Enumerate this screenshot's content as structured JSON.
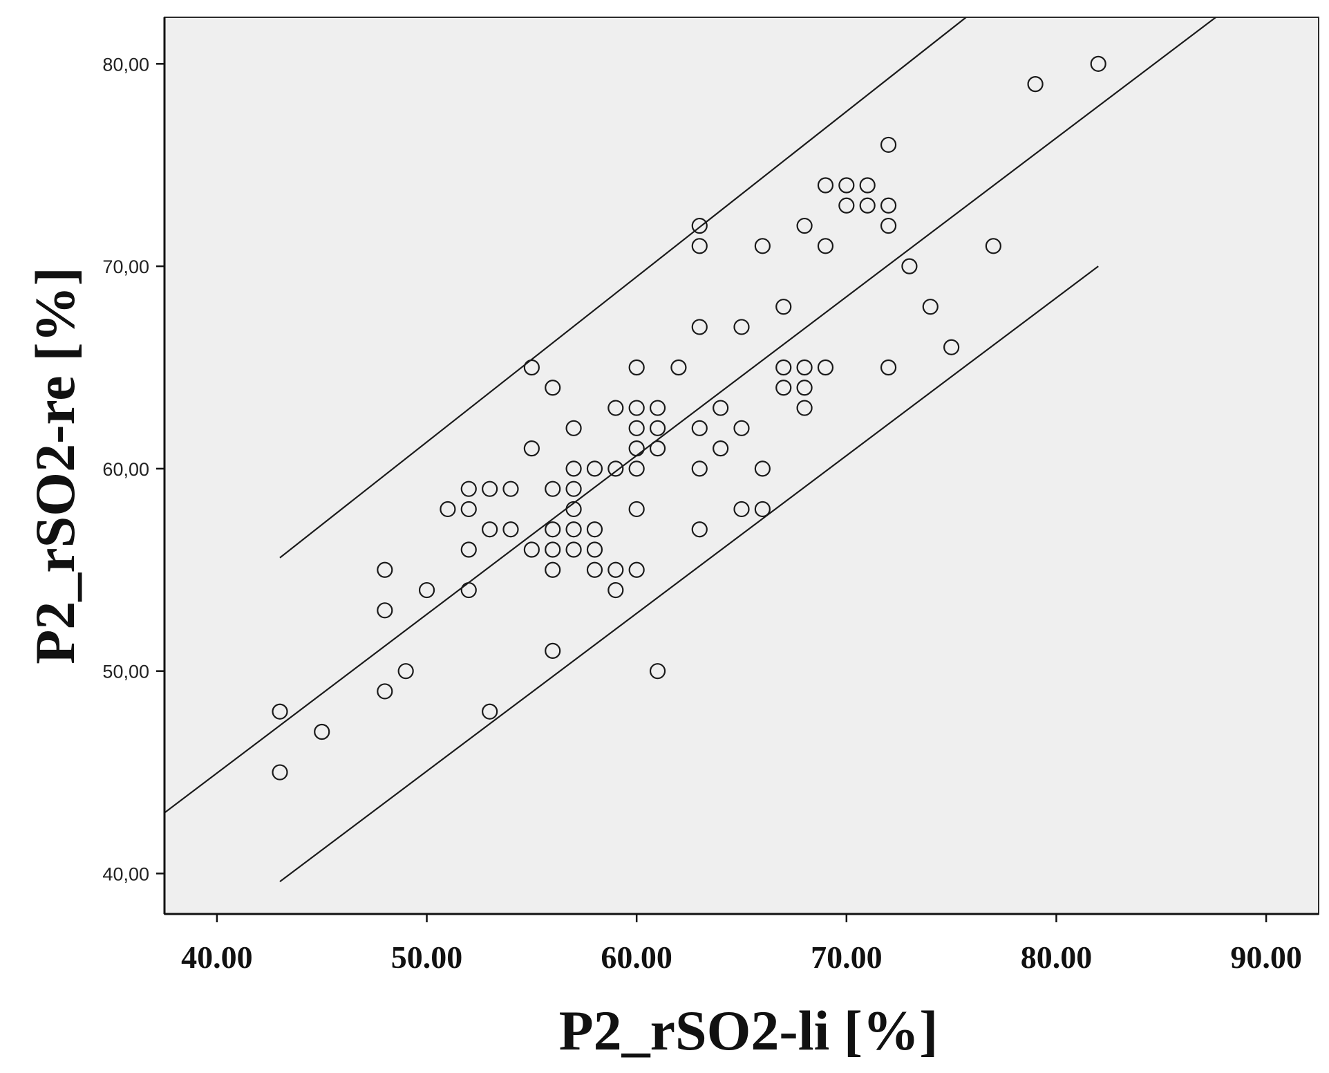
{
  "chart_data": {
    "type": "scatter",
    "title": "",
    "xlabel": "P2_rSO2-li [%]",
    "ylabel": "P2_rSO2-re [%]",
    "xlim": [
      37.5,
      92.5
    ],
    "ylim": [
      38,
      82.3
    ],
    "xticks": [
      40,
      50,
      60,
      70,
      80,
      90
    ],
    "xtick_labels": [
      "40.00",
      "50.00",
      "60.00",
      "70.00",
      "80.00",
      "90.00"
    ],
    "yticks": [
      40,
      50,
      60,
      70,
      80
    ],
    "ytick_labels": [
      "40,00",
      "50,00",
      "60,00",
      "70,00",
      "80,00"
    ],
    "grid": false,
    "legend": "none",
    "colors": {
      "plot_background": "#efefef",
      "marker": "#1a1a1a",
      "line": "#1a1a1a"
    },
    "fit_lines": [
      {
        "role": "upper",
        "x": [
          43,
          75.7
        ],
        "y": [
          55.6,
          82.3
        ]
      },
      {
        "role": "fit",
        "x": [
          37.5,
          87.6
        ],
        "y": [
          43,
          82.3
        ]
      },
      {
        "role": "lower",
        "x": [
          43,
          82
        ],
        "y": [
          39.6,
          70
        ]
      }
    ],
    "points": [
      [
        43,
        48
      ],
      [
        43,
        45
      ],
      [
        45,
        47
      ],
      [
        48,
        55
      ],
      [
        48,
        53
      ],
      [
        48,
        49
      ],
      [
        49,
        50
      ],
      [
        50,
        54
      ],
      [
        51,
        58
      ],
      [
        52,
        59
      ],
      [
        52,
        58
      ],
      [
        52,
        56
      ],
      [
        52,
        54
      ],
      [
        53,
        59
      ],
      [
        53,
        57
      ],
      [
        53,
        48
      ],
      [
        54,
        59
      ],
      [
        54,
        57
      ],
      [
        55,
        65
      ],
      [
        55,
        61
      ],
      [
        55,
        56
      ],
      [
        56,
        64
      ],
      [
        56,
        59
      ],
      [
        56,
        57
      ],
      [
        56,
        56
      ],
      [
        56,
        55
      ],
      [
        56,
        51
      ],
      [
        57,
        62
      ],
      [
        57,
        60
      ],
      [
        57,
        59
      ],
      [
        57,
        58
      ],
      [
        57,
        57
      ],
      [
        57,
        56
      ],
      [
        58,
        60
      ],
      [
        58,
        57
      ],
      [
        58,
        56
      ],
      [
        58,
        55
      ],
      [
        59,
        63
      ],
      [
        59,
        60
      ],
      [
        59,
        55
      ],
      [
        59,
        54
      ],
      [
        60,
        65
      ],
      [
        60,
        63
      ],
      [
        60,
        62
      ],
      [
        60,
        61
      ],
      [
        60,
        60
      ],
      [
        60,
        58
      ],
      [
        60,
        55
      ],
      [
        61,
        63
      ],
      [
        61,
        62
      ],
      [
        61,
        61
      ],
      [
        61,
        50
      ],
      [
        62,
        65
      ],
      [
        63,
        72
      ],
      [
        63,
        71
      ],
      [
        63,
        67
      ],
      [
        63,
        62
      ],
      [
        63,
        60
      ],
      [
        63,
        57
      ],
      [
        64,
        63
      ],
      [
        64,
        61
      ],
      [
        65,
        67
      ],
      [
        65,
        62
      ],
      [
        65,
        58
      ],
      [
        66,
        71
      ],
      [
        66,
        60
      ],
      [
        66,
        58
      ],
      [
        67,
        68
      ],
      [
        67,
        65
      ],
      [
        67,
        64
      ],
      [
        68,
        72
      ],
      [
        68,
        65
      ],
      [
        68,
        64
      ],
      [
        68,
        63
      ],
      [
        69,
        74
      ],
      [
        69,
        71
      ],
      [
        69,
        65
      ],
      [
        70,
        74
      ],
      [
        70,
        73
      ],
      [
        71,
        74
      ],
      [
        71,
        73
      ],
      [
        72,
        76
      ],
      [
        72,
        73
      ],
      [
        72,
        72
      ],
      [
        72,
        65
      ],
      [
        73,
        70
      ],
      [
        74,
        68
      ],
      [
        75,
        66
      ],
      [
        77,
        71
      ],
      [
        79,
        79
      ],
      [
        82,
        80
      ]
    ]
  }
}
